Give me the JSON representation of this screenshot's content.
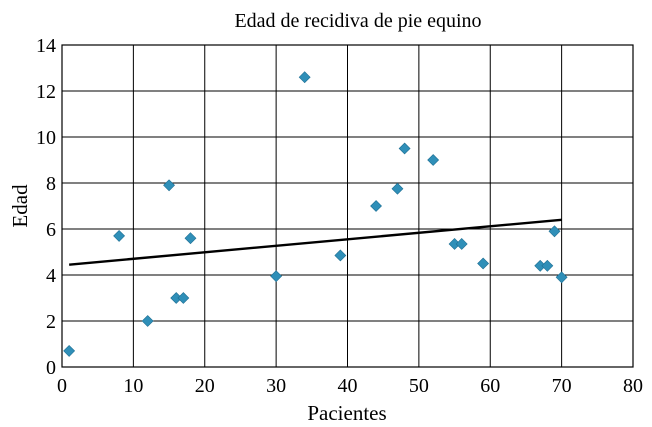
{
  "chart_data": {
    "type": "scatter",
    "title": "Edad de recidiva de pie equino",
    "xlabel": "Pacientes",
    "ylabel": "Edad",
    "xlim": [
      0,
      80
    ],
    "ylim": [
      0,
      14
    ],
    "x_ticks": [
      0,
      10,
      20,
      30,
      40,
      50,
      60,
      70,
      80
    ],
    "y_ticks": [
      0,
      2,
      4,
      6,
      8,
      10,
      12,
      14
    ],
    "grid": true,
    "marker": "diamond",
    "point_color": "#2f8fb8",
    "points": [
      {
        "x": 1,
        "y": 0.7
      },
      {
        "x": 8,
        "y": 5.7
      },
      {
        "x": 12,
        "y": 2.0
      },
      {
        "x": 15,
        "y": 7.9
      },
      {
        "x": 16,
        "y": 3.0
      },
      {
        "x": 17,
        "y": 3.0
      },
      {
        "x": 18,
        "y": 5.6
      },
      {
        "x": 30,
        "y": 3.95
      },
      {
        "x": 34,
        "y": 12.6
      },
      {
        "x": 39,
        "y": 4.85
      },
      {
        "x": 44,
        "y": 7.0
      },
      {
        "x": 47,
        "y": 7.75
      },
      {
        "x": 48,
        "y": 9.5
      },
      {
        "x": 52,
        "y": 9.0
      },
      {
        "x": 55,
        "y": 5.35
      },
      {
        "x": 56,
        "y": 5.35
      },
      {
        "x": 59,
        "y": 4.5
      },
      {
        "x": 67,
        "y": 4.4
      },
      {
        "x": 68,
        "y": 4.4
      },
      {
        "x": 69,
        "y": 5.9
      },
      {
        "x": 70,
        "y": 3.9
      }
    ],
    "trendline": {
      "x": [
        1,
        70
      ],
      "y": [
        4.45,
        6.4
      ]
    }
  }
}
